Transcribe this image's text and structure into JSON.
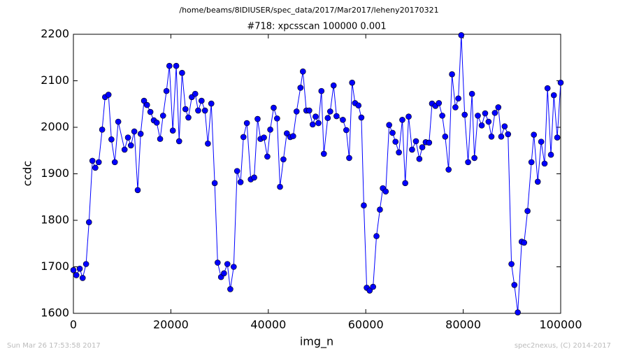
{
  "chart_data": {
    "type": "line",
    "suptitle": "/home/beams/8IDIUSER/spec_data/2017/Mar2017/leheny20170321",
    "title": "#718: xpcsscan 100000 0.001",
    "xlabel": "img_n",
    "ylabel": "ccdc",
    "footer_left": "Sun Mar 26 17:53:58 2017",
    "footer_right": "spec2nexus, (C) 2014-2017",
    "xlim": [
      0,
      100000
    ],
    "xticks": [
      0,
      20000,
      40000,
      60000,
      80000,
      100000
    ],
    "ylim": [
      1600,
      2200
    ],
    "yticks": [
      1600,
      1700,
      1800,
      1900,
      2000,
      2100,
      2200
    ],
    "color": "#0000ff",
    "marker": "o",
    "x": [
      0,
      600,
      1300,
      1900,
      2600,
      3200,
      3900,
      4500,
      5200,
      5900,
      6500,
      7200,
      7800,
      8500,
      9200,
      10500,
      11200,
      11800,
      12500,
      13200,
      13800,
      14500,
      15100,
      15800,
      16500,
      17100,
      17800,
      18400,
      19100,
      19700,
      20400,
      21100,
      21700,
      22300,
      23000,
      23600,
      24300,
      25000,
      25600,
      26300,
      27000,
      27600,
      28300,
      29000,
      29600,
      30300,
      30900,
      31600,
      32200,
      32900,
      33600,
      34300,
      34900,
      35600,
      36400,
      37100,
      37800,
      38400,
      39100,
      39800,
      40400,
      41100,
      41800,
      42400,
      43100,
      43800,
      44500,
      45100,
      45800,
      46600,
      47100,
      47800,
      48400,
      49100,
      49700,
      50300,
      50900,
      51400,
      52200,
      52700,
      53400,
      54000,
      55300,
      56000,
      56600,
      57200,
      57800,
      58500,
      59100,
      59600,
      60200,
      60800,
      61500,
      62200,
      62900,
      63500,
      64100,
      64800,
      65500,
      66100,
      66800,
      67500,
      68100,
      68800,
      69500,
      70300,
      71000,
      71600,
      72300,
      73000,
      73600,
      74300,
      75000,
      75700,
      76300,
      77000,
      77700,
      78400,
      79000,
      79600,
      80300,
      81000,
      81800,
      82300,
      83000,
      83800,
      84500,
      85200,
      85800,
      86500,
      87200,
      87800,
      88500,
      89200,
      89900,
      90500,
      91200,
      92000,
      92500,
      93200,
      94000,
      94500,
      95300,
      96000,
      96700,
      97300,
      98000,
      98600,
      99300,
      100000
    ],
    "values": [
      1693,
      1682,
      1696,
      1676,
      1706,
      1796,
      1928,
      1913,
      1925,
      1995,
      2065,
      2070,
      1974,
      1925,
      2012,
      1952,
      1978,
      1961,
      1991,
      1865,
      1986,
      2057,
      2048,
      2033,
      2015,
      2010,
      1975,
      2025,
      2078,
      2132,
      1993,
      2132,
      1970,
      2117,
      2039,
      2021,
      2065,
      2072,
      2036,
      2057,
      2036,
      1965,
      2051,
      1880,
      1709,
      1678,
      1686,
      1706,
      1652,
      1700,
      1906,
      1882,
      1979,
      2009,
      1888,
      1892,
      2018,
      1975,
      1978,
      1937,
      1995,
      2042,
      2019,
      1872,
      1931,
      1987,
      1979,
      1981,
      2034,
      2085,
      2120,
      2036,
      2036,
      2006,
      2023,
      2009,
      2078,
      1943,
      2020,
      2034,
      2090,
      2024,
      2016,
      1994,
      1934,
      2096,
      2052,
      2047,
      2021,
      1832,
      1655,
      1649,
      1657,
      1766,
      1823,
      1869,
      1862,
      2005,
      1988,
      1969,
      1946,
      2016,
      1880,
      2023,
      1952,
      1970,
      1932,
      1957,
      1968,
      1967,
      2051,
      2046,
      2052,
      2025,
      1980,
      1909,
      2114,
      2043,
      2062,
      2198,
      2027,
      1925,
      2072,
      1934,
      2025,
      2004,
      2030,
      2012,
      1980,
      2031,
      2043,
      1980,
      2002,
      1985,
      1706,
      1661,
      1602,
      1754,
      1752,
      1820,
      1925,
      1984,
      1883,
      1969,
      1922,
      2084,
      1941,
      2069,
      1978,
      2096
    ]
  }
}
